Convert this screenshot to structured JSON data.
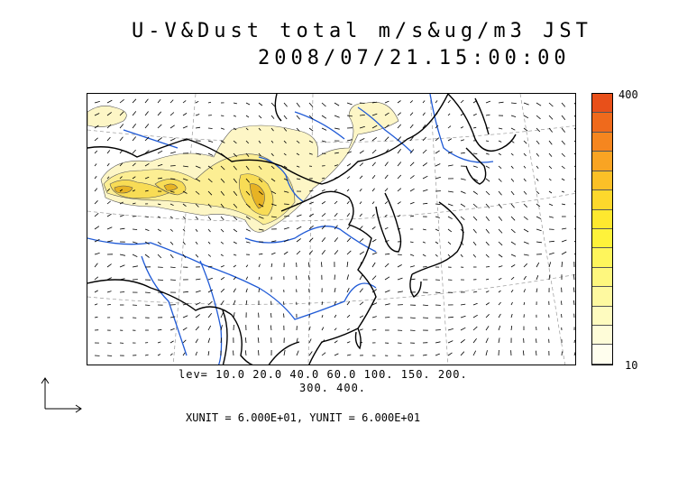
{
  "title": {
    "line1": "U-V&Dust total m/s&ug/m3 JST",
    "line2": "2008/07/21.15:00:00"
  },
  "levels": {
    "line1": "lev= 10.0 20.0 40.0 60.0 100. 150. 200.",
    "line2": "300. 400."
  },
  "units_text": "XUNIT = 6.000E+01, YUNIT = 6.000E+01",
  "colorbar": {
    "max_label": "400",
    "min_label": "10",
    "colors": [
      "#e8501a",
      "#ef6a1c",
      "#f5861f",
      "#f9a423",
      "#fbc027",
      "#fdd82c",
      "#fee82f",
      "#fef23a",
      "#fef55c",
      "#fef77e",
      "#fef9a0",
      "#fefbbf",
      "#fefcd8",
      "#fffeee"
    ]
  },
  "icons": {
    "reference_vector": "reference-arrow-icon"
  },
  "colors": {
    "coast": "#000000",
    "river": "#1f5ad6",
    "grid": "#888888",
    "wind": "#000000"
  }
}
